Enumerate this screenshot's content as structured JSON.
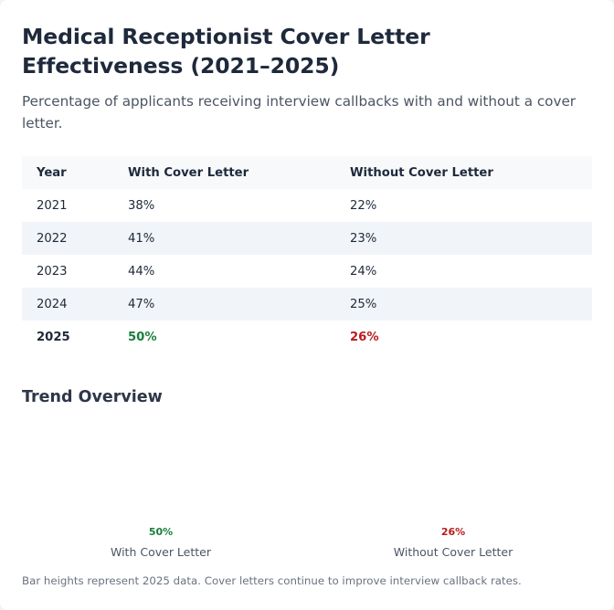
{
  "title": "Medical Receptionist Cover Letter Effectiveness (2021–2025)",
  "subtitle": "Percentage of applicants receiving interview callbacks with and without a cover letter.",
  "table": {
    "headers": [
      "Year",
      "With Cover Letter",
      "Without Cover Letter"
    ],
    "rows": [
      [
        "2021",
        "38%",
        "22%"
      ],
      [
        "2022",
        "41%",
        "23%"
      ],
      [
        "2023",
        "44%",
        "24%"
      ],
      [
        "2024",
        "47%",
        "25%"
      ],
      [
        "2025",
        "50%",
        "26%"
      ]
    ]
  },
  "trend_heading": "Trend Overview",
  "footnote": "Bar heights represent 2025 data. Cover letters continue to improve interview callback rates.",
  "colors": {
    "with": "#1a7f3c",
    "without": "#b91c1c"
  },
  "chart_data": [
    {
      "type": "table",
      "title": "Medical Receptionist Cover Letter Effectiveness (2021–2025)",
      "subtitle": "Percentage of applicants receiving interview callbacks with and without a cover letter.",
      "categories": [
        "2021",
        "2022",
        "2023",
        "2024",
        "2025"
      ],
      "series": [
        {
          "name": "With Cover Letter",
          "values": [
            38,
            41,
            44,
            47,
            50
          ]
        },
        {
          "name": "Without Cover Letter",
          "values": [
            22,
            23,
            24,
            25,
            26
          ]
        }
      ]
    },
    {
      "type": "bar",
      "title": "Trend Overview",
      "categories": [
        "With Cover Letter",
        "Without Cover Letter"
      ],
      "values": [
        50,
        26
      ],
      "value_labels": [
        "50%",
        "26%"
      ],
      "colors": [
        "#1a7f3c",
        "#b91c1c"
      ]
    }
  ]
}
